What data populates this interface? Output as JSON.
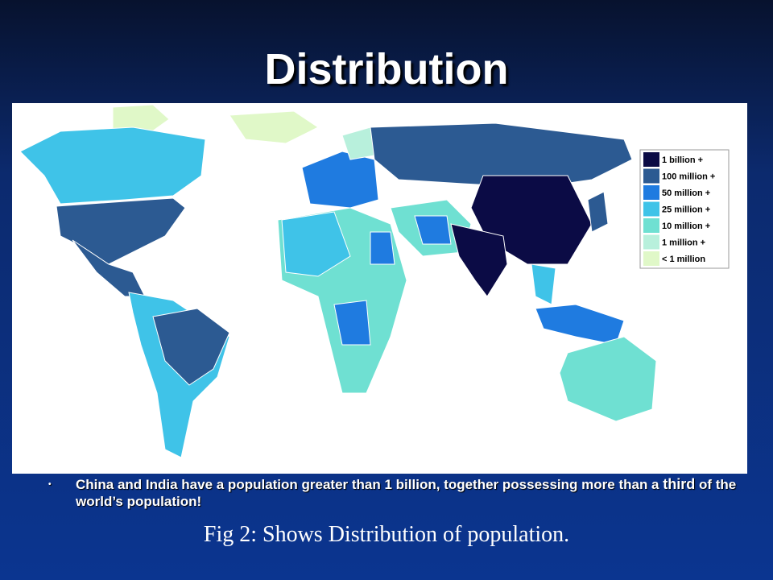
{
  "title": "Distribution",
  "legend": [
    {
      "label": "1 billion +",
      "color": "#0b0b45"
    },
    {
      "label": "100 million +",
      "color": "#2c5a92"
    },
    {
      "label": "50 million +",
      "color": "#1f7be0"
    },
    {
      "label": "25 million +",
      "color": "#3fc3e8"
    },
    {
      "label": "10 million +",
      "color": "#6fe0d2"
    },
    {
      "label": "1 million +",
      "color": "#b8f0dc"
    },
    {
      "label": "< 1 million",
      "color": "#e0f8c8"
    }
  ],
  "bullet": [
    "China and India have a population greater than 1 billion, together possessing more than a ",
    "third",
    " of the world’s population!"
  ],
  "caption": "Fig 2: Shows Distribution of population."
}
